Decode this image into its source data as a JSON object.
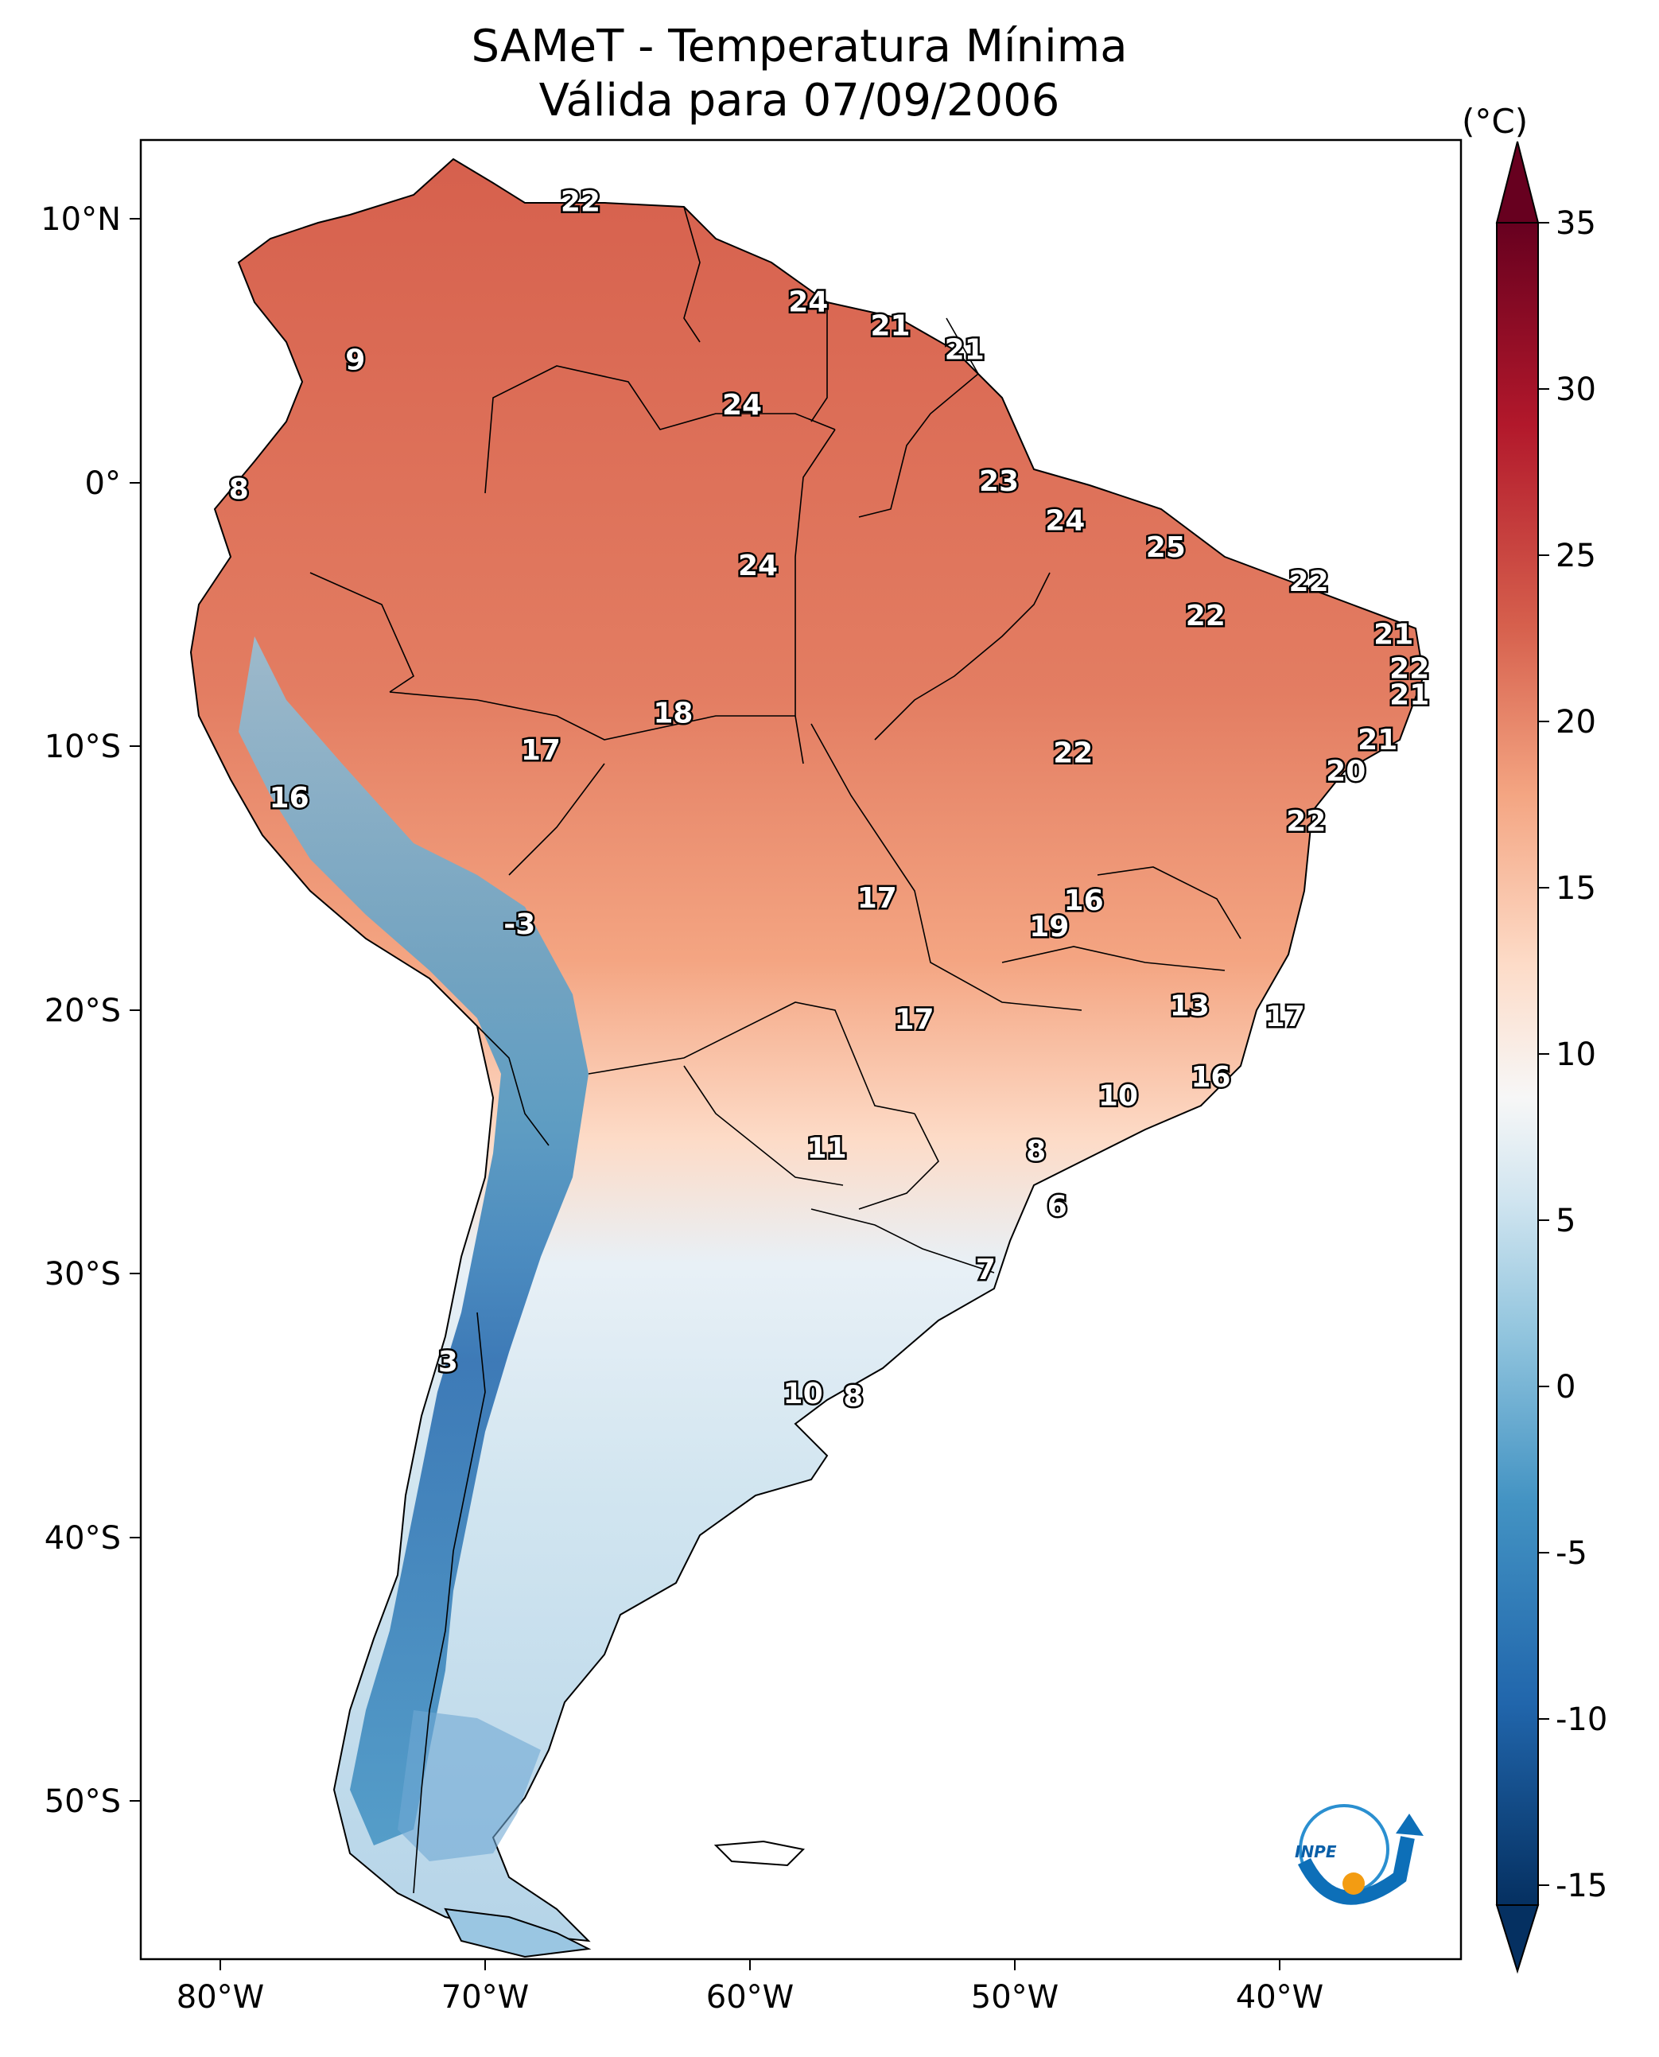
{
  "title": {
    "line1": "SAMeT - Temperatura Mínima",
    "line2": "Válida para 07/09/2006"
  },
  "axes": {
    "lon_ticks": [
      "80°W",
      "70°W",
      "60°W",
      "50°W",
      "40°W"
    ],
    "lat_ticks": [
      "10°N",
      "0°",
      "10°S",
      "20°S",
      "30°S",
      "40°S",
      "50°S"
    ],
    "lon_range": [
      -83,
      -33
    ],
    "lat_range": [
      -56,
      13
    ]
  },
  "colorbar": {
    "unit": "(°C)",
    "ticks": [
      "35",
      "30",
      "25",
      "20",
      "15",
      "10",
      "5",
      "0",
      "-5",
      "-10",
      "-15"
    ],
    "range": [
      -17,
      38
    ],
    "colormap": "RdBu_r",
    "colors": [
      "#053061",
      "#2166ac",
      "#4393c3",
      "#92c5de",
      "#d1e5f0",
      "#f7f7f7",
      "#fddbc7",
      "#f4a582",
      "#d6604d",
      "#b2182b",
      "#67001f"
    ]
  },
  "station_labels": [
    {
      "text": "22",
      "lon": -66.4,
      "lat": 10.6
    },
    {
      "text": "24",
      "lon": -57.8,
      "lat": 6.8
    },
    {
      "text": "21",
      "lon": -54.7,
      "lat": 5.9
    },
    {
      "text": "21",
      "lon": -51.9,
      "lat": 5.0
    },
    {
      "text": "9",
      "lon": -74.9,
      "lat": 4.6
    },
    {
      "text": "24",
      "lon": -60.3,
      "lat": 2.9
    },
    {
      "text": "8",
      "lon": -79.3,
      "lat": -0.3
    },
    {
      "text": "23",
      "lon": -50.6,
      "lat": 0.0
    },
    {
      "text": "24",
      "lon": -48.1,
      "lat": -1.5
    },
    {
      "text": "25",
      "lon": -44.3,
      "lat": -2.5
    },
    {
      "text": "24",
      "lon": -59.7,
      "lat": -3.2
    },
    {
      "text": "22",
      "lon": -38.9,
      "lat": -3.8
    },
    {
      "text": "22",
      "lon": -42.8,
      "lat": -5.1
    },
    {
      "text": "21",
      "lon": -35.7,
      "lat": -5.8
    },
    {
      "text": "22",
      "lon": -35.1,
      "lat": -7.1
    },
    {
      "text": "21",
      "lon": -35.1,
      "lat": -8.1
    },
    {
      "text": "18",
      "lon": -62.9,
      "lat": -8.8
    },
    {
      "text": "17",
      "lon": -67.9,
      "lat": -10.2
    },
    {
      "text": "21",
      "lon": -36.3,
      "lat": -9.8
    },
    {
      "text": "22",
      "lon": -47.8,
      "lat": -10.3
    },
    {
      "text": "20",
      "lon": -37.5,
      "lat": -11.0
    },
    {
      "text": "16",
      "lon": -77.4,
      "lat": -12.0
    },
    {
      "text": "22",
      "lon": -39.0,
      "lat": -12.9
    },
    {
      "text": "17",
      "lon": -55.2,
      "lat": -15.8
    },
    {
      "text": "16",
      "lon": -47.4,
      "lat": -15.9
    },
    {
      "text": "-3",
      "lon": -68.7,
      "lat": -16.8
    },
    {
      "text": "19",
      "lon": -48.7,
      "lat": -16.9
    },
    {
      "text": "13",
      "lon": -43.4,
      "lat": -19.9
    },
    {
      "text": "17",
      "lon": -53.8,
      "lat": -20.4
    },
    {
      "text": "17",
      "lon": -39.8,
      "lat": -20.3
    },
    {
      "text": "16",
      "lon": -42.6,
      "lat": -22.6
    },
    {
      "text": "10",
      "lon": -46.1,
      "lat": -23.3
    },
    {
      "text": "11",
      "lon": -57.1,
      "lat": -25.3
    },
    {
      "text": "8",
      "lon": -49.2,
      "lat": -25.4
    },
    {
      "text": "6",
      "lon": -48.4,
      "lat": -27.5
    },
    {
      "text": "7",
      "lon": -51.1,
      "lat": -29.9
    },
    {
      "text": "3",
      "lon": -71.4,
      "lat": -33.4
    },
    {
      "text": "10",
      "lon": -58.0,
      "lat": -34.6
    },
    {
      "text": "8",
      "lon": -56.1,
      "lat": -34.7
    }
  ]
}
